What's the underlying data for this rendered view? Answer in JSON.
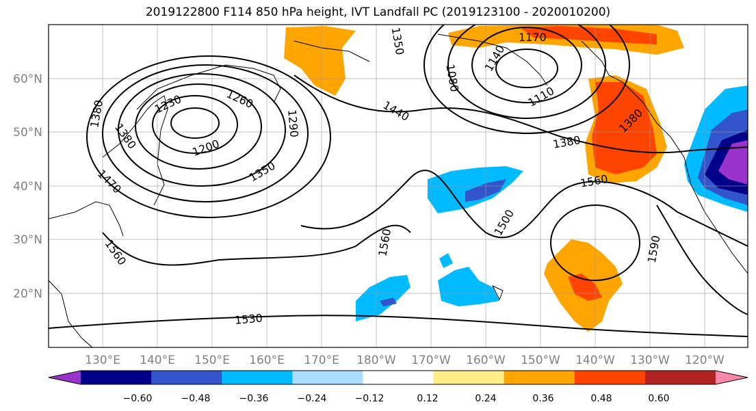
{
  "title": "2019122800 F114 850 hPa height, IVT Landfall PC (2019123100 - 2020010200)",
  "map": {
    "lat_labels": [
      "60°N",
      "50°N",
      "40°N",
      "30°N",
      "20°N"
    ],
    "lon_labels": [
      "130°E",
      "140°E",
      "150°E",
      "160°E",
      "170°E",
      "180°W",
      "170°W",
      "160°W",
      "150°W",
      "140°W",
      "130°W",
      "120°W"
    ],
    "contour_labels": [
      "1170",
      "1140",
      "1110",
      "1080",
      "1350",
      "1230",
      "1260",
      "1290",
      "1200",
      "1350",
      "1380",
      "1380",
      "1470",
      "1560",
      "1440",
      "1380",
      "1380",
      "1560",
      "1500",
      "1560",
      "1590",
      "1530"
    ],
    "grid": true,
    "projection": "equirectangular"
  },
  "colorbar": {
    "ticks": [
      "−0.60",
      "−0.48",
      "−0.36",
      "−0.24",
      "−0.12",
      "0.12",
      "0.24",
      "0.36",
      "0.48",
      "0.60"
    ],
    "colors": [
      "#9933cc",
      "#000088",
      "#3355cc",
      "#00bbff",
      "#aaddff",
      "#ffffff",
      "#ffee88",
      "#ffa500",
      "#ff4400",
      "#b22222",
      "#ff88aa"
    ],
    "extend": "both"
  }
}
